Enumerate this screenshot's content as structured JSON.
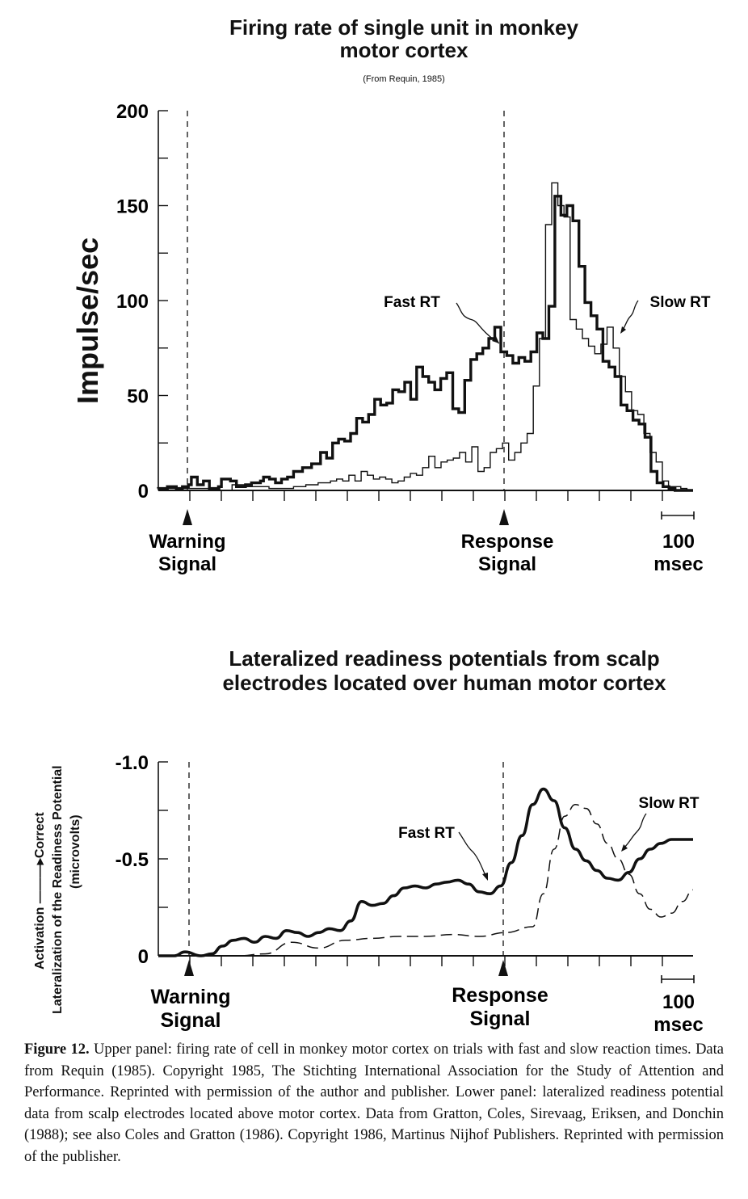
{
  "chart_data": [
    {
      "type": "line",
      "title": "Firing rate of single unit in monkey motor cortex",
      "subtitle": "(From Requin, 1985)",
      "ylabel": "Impulse/sec",
      "ylim": [
        0,
        200
      ],
      "yticks": [
        "0",
        "50",
        "100",
        "150",
        "200"
      ],
      "markers": [
        "Warning Signal",
        "Response Signal"
      ],
      "scale_bar": "100 msec",
      "series": [
        {
          "name": "Fast RT",
          "values": [
            1,
            1,
            1,
            2,
            2,
            2,
            1,
            1,
            2,
            2,
            3,
            7,
            7,
            3,
            3,
            5,
            5,
            1,
            1,
            1,
            2,
            6,
            6,
            6,
            5,
            5,
            2,
            2,
            2,
            3,
            3,
            4,
            4,
            4,
            5,
            7,
            7,
            6,
            6,
            4,
            4,
            6,
            6,
            7,
            7,
            10,
            10,
            10,
            12,
            12,
            12,
            14,
            14,
            14,
            20,
            20,
            17,
            17,
            25,
            25,
            27,
            27,
            26,
            26,
            30,
            30,
            38,
            38,
            36,
            36,
            40,
            40,
            48,
            48,
            45,
            45,
            46,
            46,
            53,
            53,
            52,
            52,
            57,
            57,
            48,
            48,
            65,
            65,
            60,
            60,
            57,
            57,
            53,
            53,
            59,
            59,
            62,
            62,
            43,
            43,
            41,
            41,
            58,
            58,
            69,
            69,
            72,
            72,
            75,
            75,
            80,
            80,
            86,
            86,
            73,
            73,
            71,
            71,
            67,
            67,
            70,
            70,
            68,
            68,
            73,
            73,
            83,
            83,
            80,
            80,
            97,
            97,
            155,
            155,
            145,
            145,
            150,
            150,
            142,
            142,
            118,
            118,
            99,
            99,
            92,
            92,
            85,
            85,
            68,
            68,
            65,
            65,
            60,
            60,
            45,
            45,
            42,
            42,
            37,
            37,
            35,
            35,
            28,
            28,
            10,
            10,
            4,
            4,
            2,
            2,
            1,
            1,
            0,
            0,
            0,
            0,
            0,
            0
          ]
        },
        {
          "name": "Slow RT",
          "values": [
            0,
            0,
            0,
            1,
            1,
            1,
            1,
            1,
            1,
            1,
            1,
            1,
            1,
            1,
            1,
            1,
            1,
            1,
            1,
            1,
            0,
            0,
            0,
            0,
            3,
            3,
            3,
            3,
            2,
            2,
            2,
            2,
            2,
            2,
            2,
            2,
            1,
            1,
            1,
            1,
            1,
            1,
            1,
            1,
            2,
            2,
            2,
            2,
            3,
            3,
            3,
            3,
            4,
            4,
            4,
            4,
            5,
            5,
            6,
            6,
            5,
            5,
            8,
            8,
            5,
            5,
            10,
            10,
            8,
            8,
            6,
            6,
            7,
            7,
            6,
            6,
            4,
            4,
            5,
            5,
            7,
            7,
            9,
            9,
            8,
            8,
            12,
            12,
            18,
            18,
            12,
            12,
            15,
            15,
            16,
            16,
            17,
            17,
            20,
            20,
            15,
            15,
            23,
            23,
            10,
            10,
            12,
            12,
            20,
            20,
            22,
            22,
            25,
            25,
            16,
            16,
            20,
            20,
            25,
            25,
            30,
            30,
            55,
            55,
            80,
            80,
            140,
            140,
            162,
            162,
            150,
            150,
            144,
            144,
            90,
            90,
            85,
            85,
            80,
            80,
            76,
            76,
            72,
            72,
            77,
            77,
            86,
            86,
            75,
            75,
            60,
            60,
            52,
            52,
            42,
            42,
            40,
            40,
            30,
            30,
            20,
            20,
            15,
            15,
            5,
            5,
            2,
            2,
            2,
            2,
            1,
            1,
            0,
            0
          ]
        }
      ]
    },
    {
      "type": "line",
      "title": "Lateralized readiness potentials from scalp electrodes located over human motor cortex",
      "ylabel": "Activation ———▸Correct",
      "ylabel2": "Lateralization of the Readiness Potential",
      "ylabel3": "(microvolts)",
      "ylim": [
        0,
        -1.0
      ],
      "yticks": [
        "0",
        "-0.5",
        "-1.0"
      ],
      "markers": [
        "Warning Signal",
        "Response Signal"
      ],
      "scale_bar": "100 msec",
      "series": [
        {
          "name": "Fast RT",
          "x": [
            0,
            0.03,
            0.05,
            0.08,
            0.1,
            0.12,
            0.14,
            0.16,
            0.18,
            0.2,
            0.22,
            0.24,
            0.26,
            0.28,
            0.3,
            0.32,
            0.34,
            0.36,
            0.38,
            0.4,
            0.42,
            0.44,
            0.46,
            0.48,
            0.5,
            0.52,
            0.54,
            0.56,
            0.58,
            0.6,
            0.62,
            0.64,
            0.66,
            0.68,
            0.7,
            0.72,
            0.74,
            0.76,
            0.78,
            0.8,
            0.82,
            0.84,
            0.86,
            0.88,
            0.9,
            0.92,
            0.94,
            0.96,
            0.98,
            1.0
          ],
          "values": [
            0,
            0,
            -0.02,
            0,
            -0.01,
            -0.05,
            -0.08,
            -0.09,
            -0.07,
            -0.1,
            -0.09,
            -0.13,
            -0.12,
            -0.1,
            -0.12,
            -0.14,
            -0.13,
            -0.18,
            -0.28,
            -0.26,
            -0.27,
            -0.31,
            -0.35,
            -0.36,
            -0.35,
            -0.37,
            -0.38,
            -0.39,
            -0.37,
            -0.33,
            -0.32,
            -0.36,
            -0.48,
            -0.62,
            -0.78,
            -0.86,
            -0.8,
            -0.66,
            -0.55,
            -0.49,
            -0.44,
            -0.4,
            -0.39,
            -0.43,
            -0.5,
            -0.55,
            -0.58,
            -0.6,
            -0.6,
            -0.6
          ]
        },
        {
          "name": "Slow RT",
          "x": [
            0,
            0.05,
            0.1,
            0.15,
            0.2,
            0.25,
            0.3,
            0.35,
            0.4,
            0.45,
            0.5,
            0.55,
            0.6,
            0.65,
            0.7,
            0.72,
            0.74,
            0.76,
            0.78,
            0.8,
            0.82,
            0.84,
            0.86,
            0.88,
            0.9,
            0.92,
            0.94,
            0.96,
            0.98,
            1.0
          ],
          "values": [
            0,
            0,
            0,
            0,
            -0.01,
            -0.07,
            -0.04,
            -0.08,
            -0.09,
            -0.1,
            -0.1,
            -0.11,
            -0.1,
            -0.12,
            -0.15,
            -0.32,
            -0.55,
            -0.72,
            -0.78,
            -0.76,
            -0.68,
            -0.58,
            -0.5,
            -0.42,
            -0.32,
            -0.24,
            -0.2,
            -0.22,
            -0.28,
            -0.34
          ]
        }
      ]
    }
  ],
  "caption": {
    "label": "Figure 12.",
    "text": " Upper panel: firing rate of cell in monkey motor cortex on trials with fast and slow reaction times. Data from Requin (1985). Copyright 1985, The Stichting International Association for the Study of Attention and Performance. Reprinted with permission of the author and publisher. Lower panel: lateralized readiness potential data from scalp electrodes located above motor cortex. Data from Gratton, Coles, Sirevaag, Eriksen, and Donchin (1988); see also Coles and Gratton (1986). Copyright 1986, Martinus Nijhof Publishers. Reprinted with permission of the publisher."
  }
}
